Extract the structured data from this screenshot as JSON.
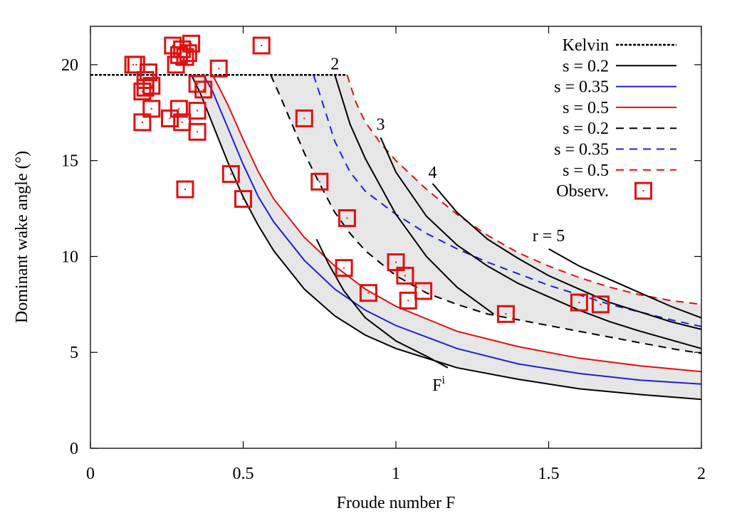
{
  "chart_data": {
    "type": "line",
    "title": "",
    "xlabel": "Froude number F",
    "ylabel": "Dominant wake angle (°)",
    "xlim": [
      0,
      2
    ],
    "ylim": [
      0,
      22
    ],
    "xticks": [
      "0",
      "0.5",
      "1",
      "1.5",
      "2"
    ],
    "yticks": [
      "0",
      "5",
      "10",
      "15",
      "20"
    ],
    "grid": false,
    "legend_position": "top-right",
    "colors": {
      "black": "#000000",
      "blue": "#1f1fd6",
      "red": "#e01010",
      "shade": "#e6e6e6",
      "marker": "#dd1111"
    },
    "legend": [
      {
        "label": "Kelvin",
        "style": "dotted",
        "color": "#000000"
      },
      {
        "label": "s = 0.2",
        "style": "solid",
        "color": "#000000"
      },
      {
        "label": "s = 0.35",
        "style": "solid",
        "color": "#1f1fd6"
      },
      {
        "label": "s = 0.5",
        "style": "solid",
        "color": "#e01010"
      },
      {
        "label": "s = 0.2",
        "style": "dashed",
        "color": "#000000"
      },
      {
        "label": "s = 0.35",
        "style": "dashed",
        "color": "#1f1fd6"
      },
      {
        "label": "s = 0.5",
        "style": "dashed",
        "color": "#e01010"
      },
      {
        "label": "Observ.",
        "style": "marker",
        "color": "#dd1111"
      }
    ],
    "series": [
      {
        "legend": 0,
        "style": "dotted",
        "color": "#000000",
        "x": [
          0.0,
          0.84
        ],
        "y": [
          19.47,
          19.47
        ]
      },
      {
        "legend": 1,
        "style": "solid",
        "color": "#000000",
        "x": [
          0.33,
          0.36,
          0.4,
          0.45,
          0.5,
          0.55,
          0.6,
          0.7,
          0.8,
          0.9,
          1.0,
          1.2,
          1.4,
          1.6,
          1.8,
          2.0
        ],
        "y": [
          19.47,
          18.5,
          16.9,
          14.9,
          13.1,
          11.6,
          10.3,
          8.3,
          6.9,
          5.9,
          5.2,
          4.2,
          3.6,
          3.1,
          2.8,
          2.55
        ]
      },
      {
        "legend": 2,
        "style": "solid",
        "color": "#1f1fd6",
        "x": [
          0.37,
          0.4,
          0.45,
          0.5,
          0.55,
          0.6,
          0.7,
          0.8,
          0.9,
          1.0,
          1.2,
          1.4,
          1.6,
          1.8,
          2.0
        ],
        "y": [
          19.47,
          18.6,
          16.7,
          14.8,
          13.1,
          11.8,
          9.8,
          8.3,
          7.2,
          6.4,
          5.2,
          4.4,
          3.9,
          3.55,
          3.35
        ]
      },
      {
        "legend": 3,
        "style": "solid",
        "color": "#e01010",
        "x": [
          0.4,
          0.45,
          0.5,
          0.55,
          0.6,
          0.7,
          0.8,
          0.9,
          1.0,
          1.2,
          1.4,
          1.6,
          1.8,
          2.0
        ],
        "y": [
          19.47,
          17.9,
          16.1,
          14.4,
          13.0,
          11.0,
          9.5,
          8.3,
          7.4,
          6.1,
          5.3,
          4.7,
          4.3,
          4.0
        ]
      },
      {
        "legend": 4,
        "style": "dashed",
        "color": "#000000",
        "x": [
          0.59,
          0.62,
          0.66,
          0.7,
          0.75,
          0.8,
          0.85,
          0.9,
          1.0,
          1.1,
          1.2,
          1.3,
          1.4,
          1.5,
          1.6,
          1.7,
          1.8,
          1.9,
          2.0
        ],
        "y": [
          19.47,
          18.4,
          16.9,
          15.4,
          13.8,
          12.3,
          11.2,
          10.3,
          9.0,
          8.1,
          7.5,
          7.0,
          6.7,
          6.4,
          6.1,
          5.8,
          5.5,
          5.2,
          4.95
        ]
      },
      {
        "legend": 5,
        "style": "dashed",
        "color": "#1f1fd6",
        "x": [
          0.73,
          0.75,
          0.8,
          0.85,
          0.9,
          1.0,
          1.1,
          1.2,
          1.3,
          1.4,
          1.5,
          1.6,
          1.7,
          1.8,
          1.9,
          2.0
        ],
        "y": [
          19.47,
          18.5,
          16.0,
          14.4,
          13.4,
          12.2,
          11.2,
          10.4,
          9.7,
          9.1,
          8.5,
          8.0,
          7.5,
          7.1,
          6.7,
          6.35
        ]
      },
      {
        "legend": 6,
        "style": "dashed",
        "color": "#e01010",
        "x": [
          0.84,
          0.87,
          0.9,
          0.95,
          1.0,
          1.1,
          1.2,
          1.3,
          1.4,
          1.5,
          1.6,
          1.7,
          1.8,
          1.9,
          2.0
        ],
        "y": [
          19.47,
          18.0,
          17.0,
          15.9,
          15.0,
          13.5,
          12.2,
          11.1,
          10.2,
          9.5,
          8.9,
          8.4,
          8.0,
          7.7,
          7.5
        ]
      },
      {
        "style": "solid",
        "color": "#000000",
        "x": [
          0.74,
          0.78,
          0.83,
          0.9,
          1.0,
          1.1,
          1.17
        ],
        "y": [
          10.9,
          9.6,
          8.2,
          6.8,
          5.6,
          4.8,
          4.2
        ]
      },
      {
        "style": "solid",
        "color": "#000000",
        "x": [
          0.8,
          0.85,
          0.9,
          1.0,
          1.1,
          1.2,
          1.32
        ],
        "y": [
          19.47,
          16.9,
          15.1,
          12.2,
          10.0,
          8.4,
          7.0
        ]
      },
      {
        "style": "solid",
        "color": "#000000",
        "x": [
          0.95,
          1.0,
          1.1,
          1.2,
          1.3,
          1.4,
          1.5,
          1.6,
          1.7,
          1.8,
          2.0
        ],
        "y": [
          16.2,
          14.4,
          12.1,
          10.6,
          9.5,
          8.6,
          7.9,
          7.2,
          6.6,
          6.1,
          5.2
        ]
      },
      {
        "style": "solid",
        "color": "#000000",
        "x": [
          1.12,
          1.2,
          1.3,
          1.4,
          1.5,
          1.6,
          1.7,
          1.8,
          1.9,
          2.0
        ],
        "y": [
          13.8,
          12.3,
          10.9,
          9.9,
          9.0,
          8.3,
          7.6,
          7.1,
          6.6,
          6.2
        ]
      },
      {
        "style": "solid",
        "color": "#000000",
        "x": [
          1.5,
          1.6,
          1.7,
          1.8,
          1.9,
          2.0
        ],
        "y": [
          10.4,
          9.5,
          8.8,
          8.1,
          7.4,
          6.8
        ]
      }
    ],
    "bands": [
      {
        "lower": 1,
        "upper": 3
      },
      {
        "lower": 4,
        "upper": 6
      }
    ],
    "annotations": [
      {
        "text": "2",
        "x": 0.8,
        "y": 19.75
      },
      {
        "text": "3",
        "x": 0.95,
        "y": 16.6
      },
      {
        "text": "4",
        "x": 1.12,
        "y": 14.1
      },
      {
        "text": "r = 5",
        "x": 1.5,
        "y": 10.8
      },
      {
        "text": "F",
        "x": 1.14,
        "y": 3.0,
        "sup": "i"
      }
    ],
    "observations": {
      "x": [
        0.14,
        0.15,
        0.17,
        0.17,
        0.18,
        0.18,
        0.19,
        0.2,
        0.2,
        0.26,
        0.27,
        0.28,
        0.29,
        0.29,
        0.3,
        0.3,
        0.31,
        0.31,
        0.32,
        0.33,
        0.35,
        0.35,
        0.35,
        0.37,
        0.42,
        0.46,
        0.5,
        0.56,
        0.7,
        0.75,
        0.83,
        0.84,
        0.91,
        1.0,
        1.03,
        1.04,
        1.09,
        1.36,
        1.6,
        1.67
      ],
      "y": [
        20.0,
        20.0,
        17.0,
        18.6,
        19.2,
        18.8,
        19.6,
        18.9,
        17.7,
        17.2,
        21.0,
        20.0,
        20.5,
        17.7,
        17.0,
        20.8,
        13.5,
        20.4,
        20.6,
        21.1,
        19.0,
        17.6,
        16.5,
        18.7,
        19.8,
        14.3,
        13.0,
        21.0,
        17.2,
        13.9,
        9.4,
        12.0,
        8.1,
        9.7,
        9.0,
        7.7,
        8.2,
        7.0,
        7.6,
        7.5
      ]
    }
  }
}
